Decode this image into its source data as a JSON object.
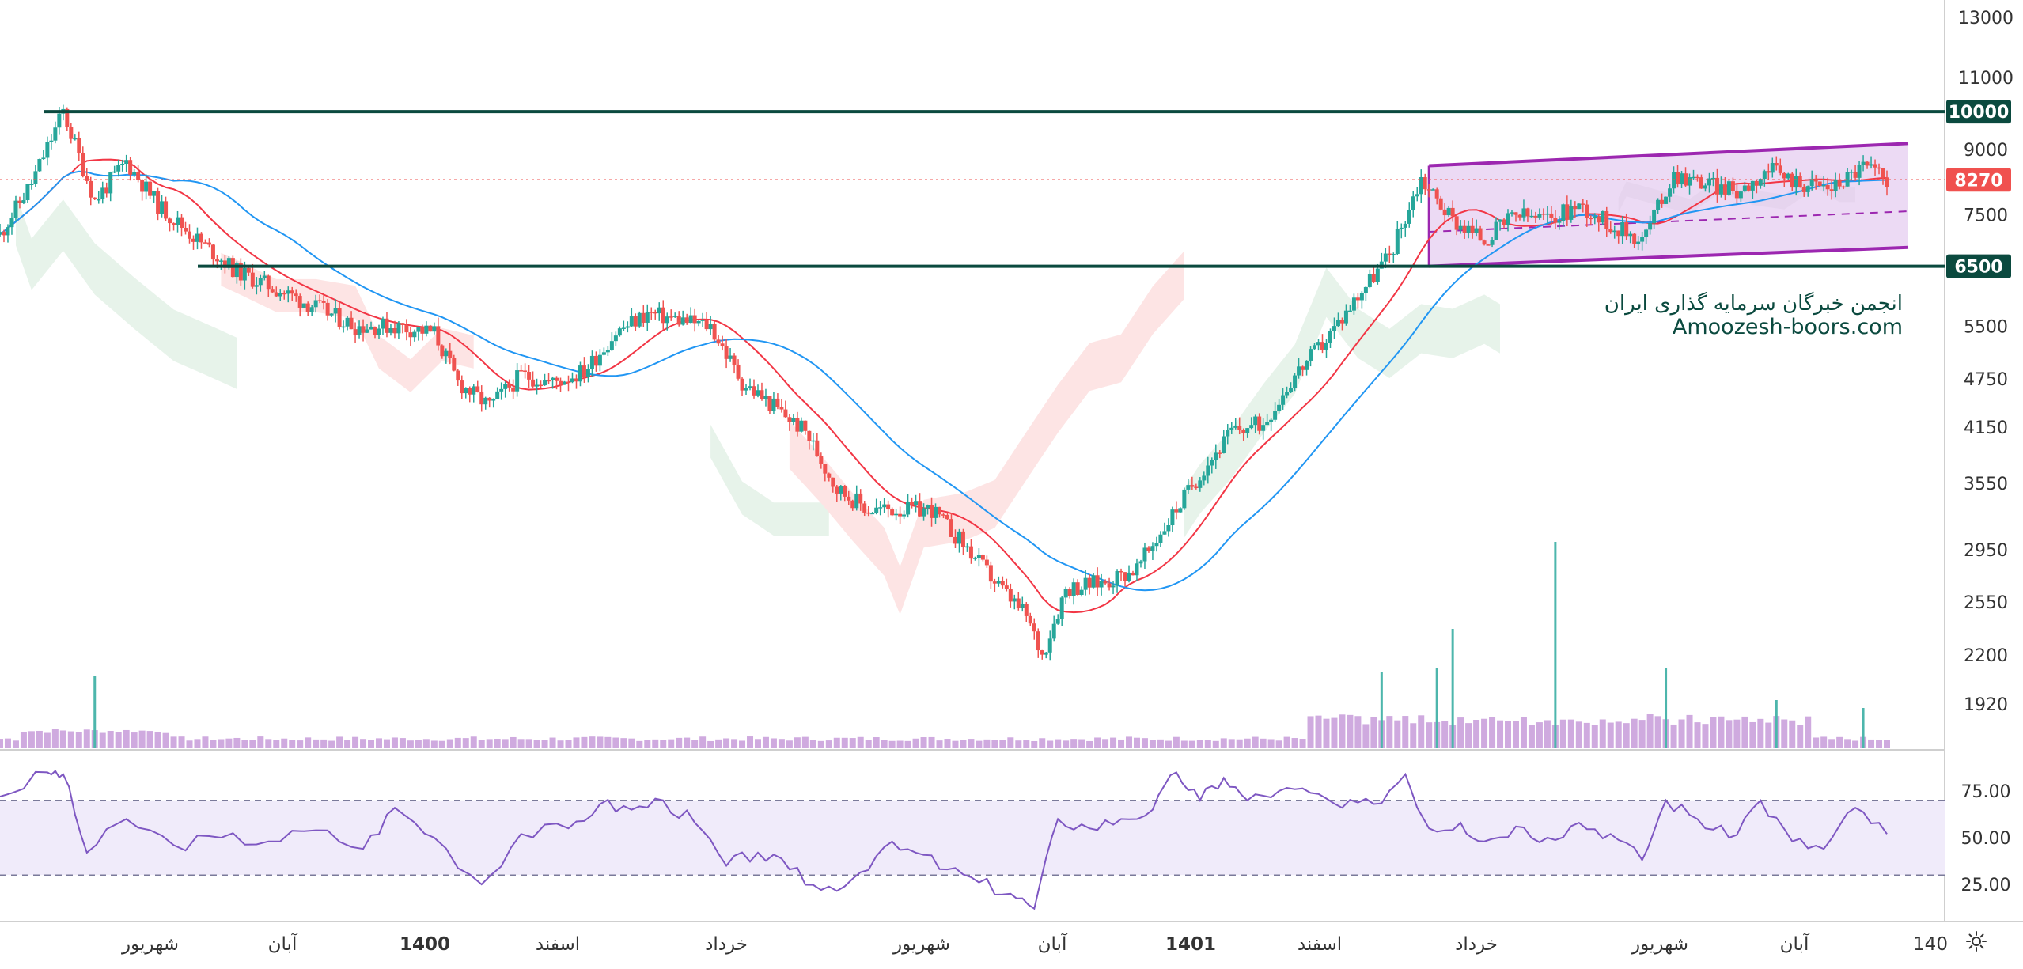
{
  "watermark": {
    "line1": "انجمن خبرگان سرمایه گذاری ایران",
    "line2": "Amoozesh-boors.com"
  },
  "colors": {
    "background": "#ffffff",
    "candle_up": "#26a69a",
    "candle_down": "#ef5350",
    "ma_fast": "#f23645",
    "ma_slow": "#2196f3",
    "level_line": "#0b4a3f",
    "channel": "#9c27b0",
    "channel_fill": "#e6cdf0",
    "cloud_bull": "#e7f3ea",
    "cloud_bear": "#fde4e4",
    "volume": "#c79bd9",
    "rsi_line": "#7e57c2",
    "rsi_band": "#f0ebfa",
    "grid": "#d9d9d9"
  },
  "chart_data": [
    {
      "type": "candlestick",
      "y_scale": "log",
      "ylim": [
        1720,
        13000
      ],
      "price_axis_ticks": [
        13000,
        11000,
        9000,
        7500,
        6500,
        5500,
        4750,
        4150,
        3550,
        2950,
        2550,
        2200,
        1920
      ],
      "time_axis_labels": [
        "شهریور",
        "آبان",
        "1400",
        "اسفند",
        "خرداد",
        "شهریور",
        "آبان",
        "1401",
        "اسفند",
        "خرداد",
        "شهریور",
        "آبان",
        "140"
      ],
      "current_price": 8270,
      "horizontal_levels": [
        10000,
        6500
      ],
      "price_labels": {
        "resistance": "10000",
        "current": "8270",
        "support": "6500"
      },
      "close_series": [
        {
          "t": 0,
          "v": 7100
        },
        {
          "t": 4,
          "v": 8200
        },
        {
          "t": 8,
          "v": 10000
        },
        {
          "t": 12,
          "v": 7800
        },
        {
          "t": 16,
          "v": 8700
        },
        {
          "t": 20,
          "v": 7700
        },
        {
          "t": 25,
          "v": 7000
        },
        {
          "t": 30,
          "v": 6400
        },
        {
          "t": 35,
          "v": 6100
        },
        {
          "t": 40,
          "v": 5800
        },
        {
          "t": 45,
          "v": 5500
        },
        {
          "t": 50,
          "v": 5500
        },
        {
          "t": 55,
          "v": 5400
        },
        {
          "t": 58,
          "v": 4700
        },
        {
          "t": 62,
          "v": 4400
        },
        {
          "t": 66,
          "v": 4800
        },
        {
          "t": 70,
          "v": 4700
        },
        {
          "t": 74,
          "v": 4850
        },
        {
          "t": 78,
          "v": 5400
        },
        {
          "t": 82,
          "v": 5700
        },
        {
          "t": 86,
          "v": 5600
        },
        {
          "t": 90,
          "v": 5500
        },
        {
          "t": 94,
          "v": 4700
        },
        {
          "t": 98,
          "v": 4400
        },
        {
          "t": 102,
          "v": 4100
        },
        {
          "t": 106,
          "v": 3500
        },
        {
          "t": 110,
          "v": 3300
        },
        {
          "t": 114,
          "v": 3300
        },
        {
          "t": 118,
          "v": 3300
        },
        {
          "t": 122,
          "v": 3000
        },
        {
          "t": 126,
          "v": 2700
        },
        {
          "t": 130,
          "v": 2450
        },
        {
          "t": 132,
          "v": 2200
        },
        {
          "t": 135,
          "v": 2650
        },
        {
          "t": 140,
          "v": 2700
        },
        {
          "t": 144,
          "v": 2800
        },
        {
          "t": 148,
          "v": 3200
        },
        {
          "t": 152,
          "v": 3650
        },
        {
          "t": 156,
          "v": 4100
        },
        {
          "t": 160,
          "v": 4200
        },
        {
          "t": 164,
          "v": 4800
        },
        {
          "t": 168,
          "v": 5300
        },
        {
          "t": 172,
          "v": 6000
        },
        {
          "t": 176,
          "v": 6700
        },
        {
          "t": 180,
          "v": 8300
        },
        {
          "t": 184,
          "v": 7400
        },
        {
          "t": 188,
          "v": 7000
        },
        {
          "t": 192,
          "v": 7500
        },
        {
          "t": 196,
          "v": 7400
        },
        {
          "t": 200,
          "v": 7700
        },
        {
          "t": 204,
          "v": 7300
        },
        {
          "t": 208,
          "v": 7000
        },
        {
          "t": 212,
          "v": 8400
        },
        {
          "t": 216,
          "v": 8200
        },
        {
          "t": 220,
          "v": 8000
        },
        {
          "t": 224,
          "v": 8500
        },
        {
          "t": 228,
          "v": 8200
        },
        {
          "t": 232,
          "v": 8100
        },
        {
          "t": 236,
          "v": 8600
        },
        {
          "t": 239,
          "v": 8270
        }
      ],
      "rsi": {
        "ylim": [
          10,
          95
        ],
        "axis_ticks": [
          75.0,
          50.0,
          25.0
        ],
        "bands": [
          30,
          70
        ],
        "series": [
          {
            "t": 0,
            "v": 72
          },
          {
            "t": 6,
            "v": 85
          },
          {
            "t": 8,
            "v": 84
          },
          {
            "t": 11,
            "v": 42
          },
          {
            "t": 16,
            "v": 60
          },
          {
            "t": 22,
            "v": 46
          },
          {
            "t": 28,
            "v": 50
          },
          {
            "t": 34,
            "v": 48
          },
          {
            "t": 40,
            "v": 54
          },
          {
            "t": 46,
            "v": 44
          },
          {
            "t": 50,
            "v": 66
          },
          {
            "t": 55,
            "v": 50
          },
          {
            "t": 61,
            "v": 25
          },
          {
            "t": 66,
            "v": 52
          },
          {
            "t": 72,
            "v": 55
          },
          {
            "t": 76,
            "v": 68
          },
          {
            "t": 80,
            "v": 65
          },
          {
            "t": 84,
            "v": 70
          },
          {
            "t": 88,
            "v": 58
          },
          {
            "t": 92,
            "v": 35
          },
          {
            "t": 96,
            "v": 42
          },
          {
            "t": 100,
            "v": 33
          },
          {
            "t": 104,
            "v": 22
          },
          {
            "t": 108,
            "v": 28
          },
          {
            "t": 112,
            "v": 45
          },
          {
            "t": 116,
            "v": 42
          },
          {
            "t": 120,
            "v": 33
          },
          {
            "t": 124,
            "v": 26
          },
          {
            "t": 128,
            "v": 20
          },
          {
            "t": 131,
            "v": 12
          },
          {
            "t": 134,
            "v": 60
          },
          {
            "t": 138,
            "v": 55
          },
          {
            "t": 142,
            "v": 60
          },
          {
            "t": 146,
            "v": 65
          },
          {
            "t": 149,
            "v": 85
          },
          {
            "t": 152,
            "v": 70
          },
          {
            "t": 155,
            "v": 82
          },
          {
            "t": 158,
            "v": 70
          },
          {
            "t": 162,
            "v": 75
          },
          {
            "t": 166,
            "v": 74
          },
          {
            "t": 170,
            "v": 66
          },
          {
            "t": 174,
            "v": 68
          },
          {
            "t": 178,
            "v": 84
          },
          {
            "t": 181,
            "v": 55
          },
          {
            "t": 185,
            "v": 58
          },
          {
            "t": 188,
            "v": 48
          },
          {
            "t": 192,
            "v": 56
          },
          {
            "t": 196,
            "v": 50
          },
          {
            "t": 200,
            "v": 58
          },
          {
            "t": 204,
            "v": 52
          },
          {
            "t": 208,
            "v": 38
          },
          {
            "t": 211,
            "v": 70
          },
          {
            "t": 215,
            "v": 60
          },
          {
            "t": 219,
            "v": 50
          },
          {
            "t": 223,
            "v": 70
          },
          {
            "t": 227,
            "v": 48
          },
          {
            "t": 231,
            "v": 44
          },
          {
            "t": 235,
            "v": 66
          },
          {
            "t": 239,
            "v": 52
          }
        ]
      }
    }
  ]
}
